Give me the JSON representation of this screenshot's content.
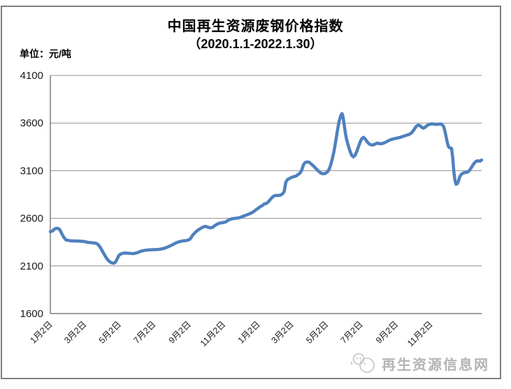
{
  "header": {
    "title": "中国再生资源废钢价格指数",
    "subtitle": "（2020.1.1-2022.1.30）",
    "unit_label": "单位：元/吨"
  },
  "watermark": {
    "site_name": "再生资源信息网",
    "logo": "mascot-logo"
  },
  "colors": {
    "line": "#4F81BD",
    "grid": "#919191",
    "axis": "#7f7f7f",
    "frame": "#7f7f7f",
    "watermark": "#b4b4b4",
    "text": "#000000"
  },
  "chart_data": {
    "type": "line",
    "title": "中国再生资源废钢价格指数",
    "subtitle": "（2020.1.1-2022.1.30）",
    "ylabel": "元/吨",
    "xlabel": "",
    "grid": true,
    "legend_position": "none",
    "ylim": [
      1600,
      4100
    ],
    "y_ticks": [
      1600,
      2100,
      2600,
      3100,
      3600,
      4100
    ],
    "x_range_days": [
      0,
      760
    ],
    "x_tick_days": [
      1,
      61,
      122,
      183,
      245,
      306,
      367,
      426,
      487,
      548,
      610,
      671
    ],
    "x_tick_labels": [
      "1月2日",
      "3月2日",
      "5月2日",
      "7月2日",
      "9月2日",
      "11月2日",
      "1月2日",
      "3月2日",
      "5月2日",
      "7月2日",
      "9月2日",
      "11月2日"
    ],
    "series": [
      {
        "name": "废钢价格指数",
        "color": "#4F81BD",
        "points": [
          [
            0,
            2460
          ],
          [
            4,
            2468
          ],
          [
            8,
            2490
          ],
          [
            12,
            2496
          ],
          [
            16,
            2486
          ],
          [
            20,
            2442
          ],
          [
            24,
            2398
          ],
          [
            28,
            2372
          ],
          [
            36,
            2364
          ],
          [
            44,
            2362
          ],
          [
            52,
            2360
          ],
          [
            60,
            2356
          ],
          [
            66,
            2348
          ],
          [
            72,
            2344
          ],
          [
            80,
            2340
          ],
          [
            84,
            2326
          ],
          [
            88,
            2296
          ],
          [
            92,
            2252
          ],
          [
            96,
            2212
          ],
          [
            100,
            2172
          ],
          [
            104,
            2148
          ],
          [
            108,
            2132
          ],
          [
            112,
            2128
          ],
          [
            115,
            2142
          ],
          [
            118,
            2178
          ],
          [
            121,
            2212
          ],
          [
            125,
            2228
          ],
          [
            131,
            2236
          ],
          [
            139,
            2232
          ],
          [
            147,
            2230
          ],
          [
            154,
            2240
          ],
          [
            160,
            2256
          ],
          [
            167,
            2264
          ],
          [
            174,
            2269
          ],
          [
            182,
            2271
          ],
          [
            190,
            2273
          ],
          [
            198,
            2280
          ],
          [
            204,
            2292
          ],
          [
            210,
            2308
          ],
          [
            216,
            2324
          ],
          [
            222,
            2344
          ],
          [
            228,
            2356
          ],
          [
            234,
            2363
          ],
          [
            240,
            2366
          ],
          [
            246,
            2380
          ],
          [
            251,
            2425
          ],
          [
            257,
            2462
          ],
          [
            263,
            2488
          ],
          [
            269,
            2508
          ],
          [
            274,
            2516
          ],
          [
            278,
            2506
          ],
          [
            282,
            2499
          ],
          [
            286,
            2506
          ],
          [
            291,
            2528
          ],
          [
            297,
            2548
          ],
          [
            303,
            2554
          ],
          [
            309,
            2562
          ],
          [
            315,
            2586
          ],
          [
            321,
            2596
          ],
          [
            327,
            2601
          ],
          [
            333,
            2606
          ],
          [
            339,
            2620
          ],
          [
            345,
            2634
          ],
          [
            351,
            2648
          ],
          [
            357,
            2665
          ],
          [
            363,
            2692
          ],
          [
            369,
            2718
          ],
          [
            373,
            2732
          ],
          [
            377,
            2750
          ],
          [
            381,
            2757
          ],
          [
            385,
            2778
          ],
          [
            389,
            2808
          ],
          [
            393,
            2832
          ],
          [
            397,
            2841
          ],
          [
            401,
            2839
          ],
          [
            405,
            2843
          ],
          [
            409,
            2855
          ],
          [
            412,
            2880
          ],
          [
            415,
            2980
          ],
          [
            418,
            3008
          ],
          [
            421,
            3016
          ],
          [
            425,
            3030
          ],
          [
            429,
            3037
          ],
          [
            433,
            3044
          ],
          [
            437,
            3062
          ],
          [
            440,
            3075
          ],
          [
            443,
            3105
          ],
          [
            446,
            3162
          ],
          [
            449,
            3186
          ],
          [
            452,
            3192
          ],
          [
            456,
            3188
          ],
          [
            460,
            3170
          ],
          [
            464,
            3148
          ],
          [
            468,
            3122
          ],
          [
            472,
            3098
          ],
          [
            476,
            3078
          ],
          [
            480,
            3068
          ],
          [
            484,
            3070
          ],
          [
            488,
            3086
          ],
          [
            491,
            3112
          ],
          [
            494,
            3160
          ],
          [
            497,
            3228
          ],
          [
            500,
            3308
          ],
          [
            503,
            3415
          ],
          [
            506,
            3525
          ],
          [
            509,
            3622
          ],
          [
            512,
            3682
          ],
          [
            514,
            3700
          ],
          [
            516,
            3660
          ],
          [
            518,
            3575
          ],
          [
            520,
            3490
          ],
          [
            522,
            3428
          ],
          [
            525,
            3365
          ],
          [
            528,
            3305
          ],
          [
            531,
            3262
          ],
          [
            534,
            3246
          ],
          [
            537,
            3262
          ],
          [
            540,
            3302
          ],
          [
            543,
            3352
          ],
          [
            546,
            3402
          ],
          [
            549,
            3438
          ],
          [
            552,
            3450
          ],
          [
            555,
            3432
          ],
          [
            558,
            3406
          ],
          [
            561,
            3386
          ],
          [
            564,
            3373
          ],
          [
            568,
            3370
          ],
          [
            572,
            3378
          ],
          [
            576,
            3390
          ],
          [
            580,
            3384
          ],
          [
            584,
            3383
          ],
          [
            588,
            3392
          ],
          [
            592,
            3403
          ],
          [
            596,
            3416
          ],
          [
            600,
            3426
          ],
          [
            604,
            3433
          ],
          [
            608,
            3439
          ],
          [
            612,
            3443
          ],
          [
            616,
            3449
          ],
          [
            620,
            3456
          ],
          [
            624,
            3466
          ],
          [
            628,
            3473
          ],
          [
            632,
            3480
          ],
          [
            636,
            3494
          ],
          [
            639,
            3516
          ],
          [
            642,
            3542
          ],
          [
            645,
            3566
          ],
          [
            648,
            3578
          ],
          [
            651,
            3574
          ],
          [
            654,
            3558
          ],
          [
            657,
            3546
          ],
          [
            660,
            3554
          ],
          [
            663,
            3570
          ],
          [
            666,
            3582
          ],
          [
            669,
            3589
          ],
          [
            672,
            3591
          ],
          [
            675,
            3590
          ],
          [
            678,
            3588
          ],
          [
            681,
            3586
          ],
          [
            684,
            3589
          ],
          [
            687,
            3591
          ],
          [
            690,
            3586
          ],
          [
            693,
            3564
          ],
          [
            695,
            3522
          ],
          [
            697,
            3468
          ],
          [
            699,
            3408
          ],
          [
            701,
            3362
          ],
          [
            703,
            3342
          ],
          [
            705,
            3338
          ],
          [
            707,
            3334
          ],
          [
            709,
            3238
          ],
          [
            711,
            3095
          ],
          [
            713,
            2998
          ],
          [
            715,
            2958
          ],
          [
            717,
            2964
          ],
          [
            719,
            2988
          ],
          [
            721,
            3028
          ],
          [
            723,
            3052
          ],
          [
            725,
            3066
          ],
          [
            727,
            3073
          ],
          [
            730,
            3079
          ],
          [
            733,
            3083
          ],
          [
            736,
            3087
          ],
          [
            739,
            3108
          ],
          [
            742,
            3133
          ],
          [
            745,
            3162
          ],
          [
            748,
            3187
          ],
          [
            751,
            3201
          ],
          [
            754,
            3203
          ],
          [
            757,
            3200
          ],
          [
            760,
            3212
          ]
        ]
      }
    ]
  }
}
